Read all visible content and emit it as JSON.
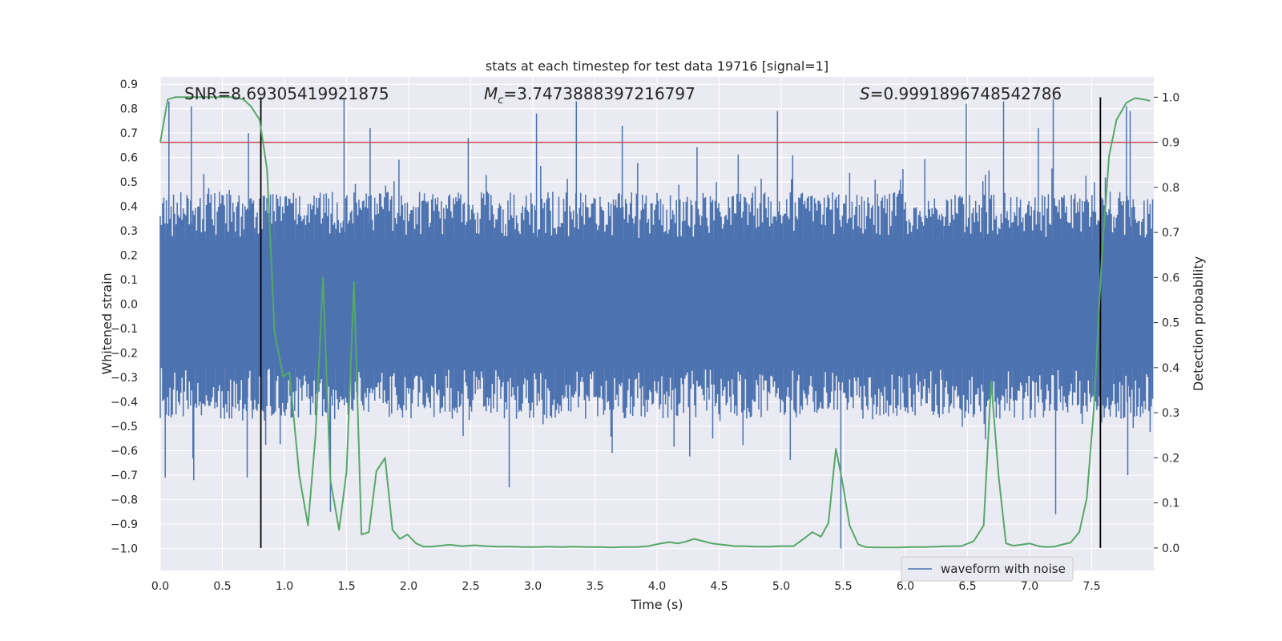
{
  "chart_data": {
    "type": "line",
    "title": "stats at each timestep for test data 19716 [signal=1]",
    "xlabel": "Time (s)",
    "ylabel_left": "Whitened strain",
    "ylabel_right": "Detection probability",
    "xlim": [
      0.0,
      8.0
    ],
    "ylim_left": [
      -1.09,
      0.93
    ],
    "ylim_right": [
      -0.05,
      1.045
    ],
    "x_ticks": [
      0.0,
      0.5,
      1.0,
      1.5,
      2.0,
      2.5,
      3.0,
      3.5,
      4.0,
      4.5,
      5.0,
      5.5,
      6.0,
      6.5,
      7.0,
      7.5
    ],
    "x_tick_labels": [
      "0.0",
      "0.5",
      "1.0",
      "1.5",
      "2.0",
      "2.5",
      "3.0",
      "3.5",
      "4.0",
      "4.5",
      "5.0",
      "5.5",
      "6.0",
      "6.5",
      "7.0",
      "7.5"
    ],
    "y_left_ticks": [
      0.9,
      0.8,
      0.7,
      0.6,
      0.5,
      0.4,
      0.3,
      0.2,
      0.1,
      0.0,
      -0.1,
      -0.2,
      -0.3,
      -0.4,
      -0.5,
      -0.6,
      -0.7,
      -0.8,
      -0.9,
      -1.0
    ],
    "y_left_tick_labels": [
      "0.9",
      "0.8",
      "0.7",
      "0.6",
      "0.5",
      "0.4",
      "0.3",
      "0.2",
      "0.1",
      "0.0",
      "−0.1",
      "−0.2",
      "−0.3",
      "−0.4",
      "−0.5",
      "−0.6",
      "−0.7",
      "−0.8",
      "−0.9",
      "−1.0"
    ],
    "y_right_ticks": [
      1.0,
      0.9,
      0.8,
      0.7,
      0.6,
      0.5,
      0.4,
      0.3,
      0.2,
      0.1,
      0.0
    ],
    "y_right_tick_labels": [
      "1.0",
      "0.9",
      "0.8",
      "0.7",
      "0.6",
      "0.5",
      "0.4",
      "0.3",
      "0.2",
      "0.1",
      "0.0"
    ],
    "annotations": {
      "snr": "SNR=8.69305419921875",
      "mc_symbol": "M",
      "mc_sub": "c",
      "mc_value": "=3.7473888397216797",
      "s_symbol": "S",
      "s_value": "=0.9991896748542786"
    },
    "legend": {
      "label": "waveform with noise",
      "loc": "lower-right"
    },
    "threshold": {
      "value": 0.9,
      "axis": "right",
      "color": "#c44e52"
    },
    "markers": [
      0.81,
      7.57
    ],
    "waveform": {
      "name": "waveform with noise",
      "color": "#4c72b0",
      "t_start": 0.0,
      "t_end": 7.99,
      "samples": 820,
      "dense_band": [
        -0.26,
        0.27
      ],
      "typical_extent": [
        -0.47,
        0.46
      ],
      "peak_min": -1.0,
      "peak_max": 0.85,
      "tall_spikes": [
        {
          "t": 0.07,
          "v": 0.83
        },
        {
          "t": 0.25,
          "v": 0.81
        },
        {
          "t": 0.71,
          "v": 0.7
        },
        {
          "t": 1.48,
          "v": 0.84
        },
        {
          "t": 1.69,
          "v": 0.72
        },
        {
          "t": 2.48,
          "v": 0.68
        },
        {
          "t": 3.03,
          "v": 0.78
        },
        {
          "t": 3.35,
          "v": 0.83
        },
        {
          "t": 3.72,
          "v": 0.73
        },
        {
          "t": 4.97,
          "v": 0.79
        },
        {
          "t": 6.49,
          "v": 0.82
        },
        {
          "t": 6.79,
          "v": 0.83
        },
        {
          "t": 7.07,
          "v": 0.72
        },
        {
          "t": 7.19,
          "v": 0.84
        },
        {
          "t": 7.78,
          "v": 0.81
        },
        {
          "t": 7.81,
          "v": 0.79
        },
        {
          "t": 0.04,
          "v": -0.71
        },
        {
          "t": 0.27,
          "v": -0.72
        },
        {
          "t": 0.7,
          "v": -0.71
        },
        {
          "t": 1.37,
          "v": -0.85
        },
        {
          "t": 2.81,
          "v": -0.75
        },
        {
          "t": 5.48,
          "v": -1.0
        },
        {
          "t": 7.21,
          "v": -0.86
        },
        {
          "t": 7.79,
          "v": -0.7
        }
      ]
    },
    "series": [
      {
        "name": "detection probability",
        "axis": "right",
        "color": "#55a868",
        "x": [
          0.0,
          0.06,
          0.12,
          0.2,
          0.3,
          0.4,
          0.5,
          0.6,
          0.67,
          0.73,
          0.8,
          0.86,
          0.92,
          0.99,
          1.04,
          1.12,
          1.19,
          1.25,
          1.31,
          1.37,
          1.44,
          1.5,
          1.56,
          1.62,
          1.68,
          1.74,
          1.81,
          1.87,
          1.93,
          1.99,
          2.06,
          2.12,
          2.18,
          2.25,
          2.33,
          2.43,
          2.53,
          2.63,
          2.73,
          2.83,
          2.93,
          3.03,
          3.13,
          3.23,
          3.33,
          3.43,
          3.53,
          3.63,
          3.73,
          3.83,
          3.93,
          4.03,
          4.1,
          4.17,
          4.23,
          4.3,
          4.37,
          4.44,
          4.5,
          4.57,
          4.63,
          4.7,
          4.8,
          4.9,
          5.0,
          5.1,
          5.18,
          5.25,
          5.32,
          5.38,
          5.44,
          5.49,
          5.55,
          5.62,
          5.68,
          5.75,
          5.85,
          5.95,
          6.05,
          6.15,
          6.25,
          6.35,
          6.45,
          6.55,
          6.63,
          6.69,
          6.75,
          6.81,
          6.87,
          6.93,
          7.0,
          7.07,
          7.13,
          7.2,
          7.27,
          7.33,
          7.4,
          7.46,
          7.52,
          7.58,
          7.64,
          7.7,
          7.78,
          7.85,
          7.92,
          7.97
        ],
        "y": [
          0.9,
          0.995,
          1.0,
          1.0,
          1.0,
          1.0,
          1.0,
          1.0,
          0.995,
          0.98,
          0.95,
          0.84,
          0.48,
          0.38,
          0.39,
          0.16,
          0.05,
          0.25,
          0.6,
          0.15,
          0.04,
          0.17,
          0.59,
          0.03,
          0.035,
          0.17,
          0.2,
          0.04,
          0.02,
          0.03,
          0.01,
          0.003,
          0.003,
          0.005,
          0.007,
          0.004,
          0.006,
          0.004,
          0.003,
          0.003,
          0.002,
          0.002,
          0.003,
          0.002,
          0.003,
          0.002,
          0.002,
          0.001,
          0.002,
          0.002,
          0.004,
          0.01,
          0.013,
          0.01,
          0.014,
          0.02,
          0.015,
          0.01,
          0.008,
          0.006,
          0.004,
          0.004,
          0.003,
          0.003,
          0.004,
          0.004,
          0.02,
          0.035,
          0.025,
          0.055,
          0.22,
          0.15,
          0.05,
          0.008,
          0.002,
          0.001,
          0.001,
          0.001,
          0.002,
          0.002,
          0.003,
          0.004,
          0.004,
          0.015,
          0.05,
          0.37,
          0.16,
          0.01,
          0.005,
          0.007,
          0.01,
          0.004,
          0.002,
          0.003,
          0.008,
          0.012,
          0.035,
          0.11,
          0.32,
          0.64,
          0.87,
          0.95,
          0.988,
          0.998,
          0.995,
          0.992
        ]
      }
    ]
  }
}
